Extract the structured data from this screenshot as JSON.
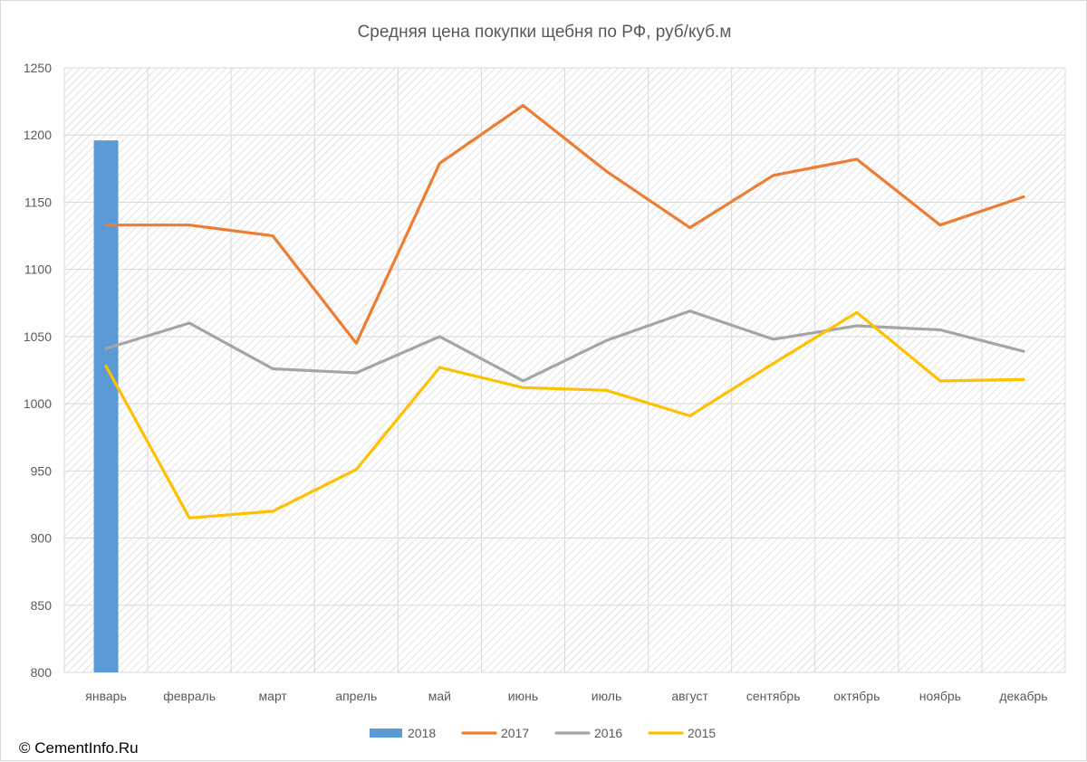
{
  "chart_data": {
    "type": "bar",
    "title": "Средняя цена покупки щебня по РФ, руб/куб.м",
    "xlabel": "",
    "ylabel": "",
    "ylim": [
      800,
      1250
    ],
    "yticks": [
      800,
      850,
      900,
      950,
      1000,
      1050,
      1100,
      1150,
      1200,
      1250
    ],
    "categories": [
      "январь",
      "февраль",
      "март",
      "апрель",
      "май",
      "июнь",
      "июль",
      "август",
      "сентябрь",
      "октябрь",
      "ноябрь",
      "декабрь"
    ],
    "grid": true,
    "legend_position": "bottom",
    "series": [
      {
        "name": "2018",
        "type": "bar",
        "color": "#5b9bd5",
        "values": [
          1196,
          null,
          null,
          null,
          null,
          null,
          null,
          null,
          null,
          null,
          null,
          null
        ]
      },
      {
        "name": "2017",
        "type": "line",
        "color": "#ed7d31",
        "values": [
          1133,
          1133,
          1125,
          1045,
          1179,
          1222,
          1173,
          1131,
          1170,
          1182,
          1133,
          1154
        ]
      },
      {
        "name": "2016",
        "type": "line",
        "color": "#a5a5a5",
        "values": [
          1041,
          1060,
          1026,
          1023,
          1050,
          1017,
          1047,
          1069,
          1048,
          1058,
          1055,
          1039
        ]
      },
      {
        "name": "2015",
        "type": "line",
        "color": "#ffc000",
        "values": [
          1028,
          915,
          920,
          951,
          1027,
          1012,
          1010,
          991,
          1030,
          1068,
          1017,
          1018
        ]
      }
    ]
  },
  "credit": "© CementInfo.Ru"
}
